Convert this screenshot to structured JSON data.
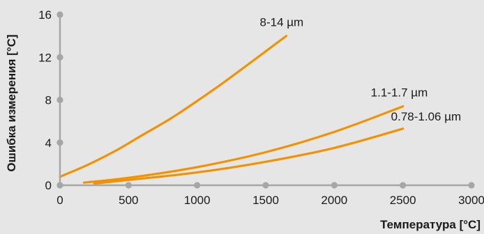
{
  "chart_data": {
    "type": "line",
    "title": "",
    "xlabel": "Температура [°C]",
    "ylabel": "Ошибка измерения [°C]",
    "xlim": [
      0,
      3000
    ],
    "ylim": [
      0,
      16
    ],
    "x_ticks": [
      0,
      500,
      1000,
      1500,
      2000,
      2500,
      3000
    ],
    "y_ticks": [
      0,
      4,
      8,
      12,
      16
    ],
    "grid": false,
    "legend": "none",
    "line_color": "#f39200",
    "axis_color": "#a6a6a6",
    "background": "#e6e6e6",
    "series": [
      {
        "name": "8-14 µm",
        "x": [
          0,
          200,
          400,
          600,
          800,
          1000,
          1200,
          1400,
          1650
        ],
        "y": [
          0.8,
          1.9,
          3.2,
          4.7,
          6.2,
          7.9,
          9.7,
          11.6,
          14.0
        ]
      },
      {
        "name": "1.1-1.7 µm",
        "x": [
          175,
          500,
          1000,
          1500,
          2000,
          2500
        ],
        "y": [
          0.25,
          0.7,
          1.7,
          3.1,
          5.0,
          7.4
        ]
      },
      {
        "name": "0.78-1.06 µm",
        "x": [
          250,
          500,
          1000,
          1500,
          2000,
          2500
        ],
        "y": [
          0.15,
          0.5,
          1.2,
          2.2,
          3.5,
          5.3
        ]
      }
    ]
  }
}
